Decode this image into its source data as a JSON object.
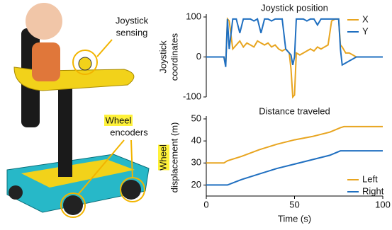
{
  "photo": {
    "annotations": [
      {
        "lines": [
          "Joystick",
          "sensing"
        ]
      },
      {
        "lines": [
          "Wheel",
          "encoders"
        ]
      }
    ]
  },
  "chart_data": [
    {
      "type": "line",
      "title": "Joystick position",
      "ylabel": [
        "Joystick",
        "coordinates"
      ],
      "x": [
        0,
        10,
        11,
        12,
        13,
        15,
        17,
        19,
        21,
        23,
        25,
        27,
        29,
        31,
        33,
        35,
        37,
        39,
        41,
        43,
        45,
        47,
        48,
        49,
        50,
        51,
        53,
        55,
        57,
        59,
        61,
        63,
        65,
        67,
        69,
        71,
        73,
        75,
        76,
        77,
        79,
        81,
        83,
        85,
        90,
        100
      ],
      "series": [
        {
          "name": "X",
          "color": "#e8a520",
          "values": [
            0,
            0,
            -20,
            95,
            90,
            20,
            30,
            40,
            25,
            35,
            30,
            25,
            40,
            35,
            30,
            35,
            25,
            30,
            20,
            15,
            20,
            10,
            -30,
            -100,
            -95,
            10,
            5,
            10,
            15,
            20,
            15,
            25,
            20,
            25,
            30,
            90,
            95,
            95,
            30,
            25,
            10,
            10,
            5,
            0,
            0,
            0
          ]
        },
        {
          "name": "Y",
          "color": "#1f6fc0",
          "values": [
            0,
            0,
            -25,
            95,
            20,
            95,
            95,
            60,
            95,
            95,
            95,
            90,
            95,
            60,
            95,
            95,
            90,
            95,
            95,
            95,
            20,
            10,
            5,
            -20,
            0,
            95,
            95,
            95,
            90,
            95,
            95,
            80,
            95,
            95,
            95,
            95,
            95,
            95,
            20,
            -20,
            -15,
            -10,
            -5,
            0,
            0,
            0
          ]
        }
      ],
      "xlim": [
        0,
        100
      ],
      "ylim": [
        -100,
        100
      ],
      "yticks": [
        -100,
        0,
        100
      ],
      "legend": "top-right"
    },
    {
      "type": "line",
      "title": "Distance traveled",
      "ylabel": [
        "Wheel",
        "displacement (m)"
      ],
      "xlabel": "Time (s)",
      "x": [
        0,
        10,
        12,
        20,
        30,
        40,
        50,
        60,
        70,
        76,
        78,
        100
      ],
      "series": [
        {
          "name": "Left",
          "color": "#e8a520",
          "values": [
            30,
            30,
            31,
            33,
            36,
            38.5,
            40.5,
            42,
            44,
            46,
            46.5,
            46.5
          ]
        },
        {
          "name": "Right",
          "color": "#1f6fc0",
          "values": [
            20,
            20,
            20,
            22.5,
            25,
            27.5,
            29.5,
            31.5,
            33.5,
            35.5,
            35.5,
            35.5
          ]
        }
      ],
      "xlim": [
        0,
        100
      ],
      "xticks": [
        0,
        50,
        100
      ],
      "ylim": [
        15,
        50
      ],
      "yticks": [
        20,
        30,
        40,
        50
      ],
      "legend": "bottom-right"
    }
  ]
}
